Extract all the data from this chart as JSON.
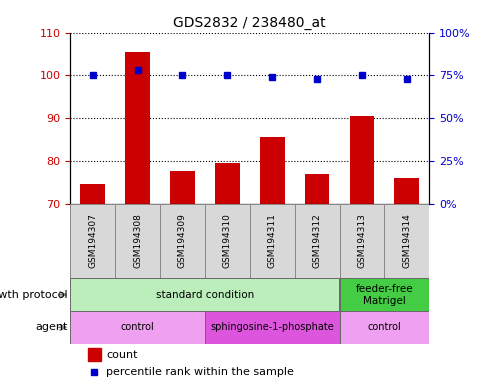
{
  "title": "GDS2832 / 238480_at",
  "samples": [
    "GSM194307",
    "GSM194308",
    "GSM194309",
    "GSM194310",
    "GSM194311",
    "GSM194312",
    "GSM194313",
    "GSM194314"
  ],
  "counts": [
    74.5,
    105.5,
    77.5,
    79.5,
    85.5,
    77.0,
    90.5,
    76.0
  ],
  "percentile_ranks": [
    75,
    78,
    75,
    75,
    74,
    73,
    75,
    73
  ],
  "ylim_left": [
    70,
    110
  ],
  "ylim_right": [
    0,
    100
  ],
  "yticks_left": [
    70,
    80,
    90,
    100,
    110
  ],
  "yticks_right": [
    0,
    25,
    50,
    75,
    100
  ],
  "bar_color": "#cc0000",
  "dot_color": "#0000cc",
  "grid_color": "#000000",
  "growth_protocol": {
    "label": "growth protocol",
    "groups": [
      {
        "text": "standard condition",
        "start": 0,
        "end": 6,
        "color": "#bbeebb"
      },
      {
        "text": "feeder-free\nMatrigel",
        "start": 6,
        "end": 8,
        "color": "#44cc44"
      }
    ]
  },
  "agent": {
    "label": "agent",
    "groups": [
      {
        "text": "control",
        "start": 0,
        "end": 3,
        "color": "#f0a0f0"
      },
      {
        "text": "sphingosine-1-phosphate",
        "start": 3,
        "end": 6,
        "color": "#dd55dd"
      },
      {
        "text": "control",
        "start": 6,
        "end": 8,
        "color": "#f0a0f0"
      }
    ]
  },
  "legend": [
    {
      "label": "count",
      "color": "#cc0000"
    },
    {
      "label": "percentile rank within the sample",
      "color": "#0000cc"
    }
  ],
  "tick_label_color_left": "#cc0000",
  "tick_label_color_right": "#0000cc"
}
